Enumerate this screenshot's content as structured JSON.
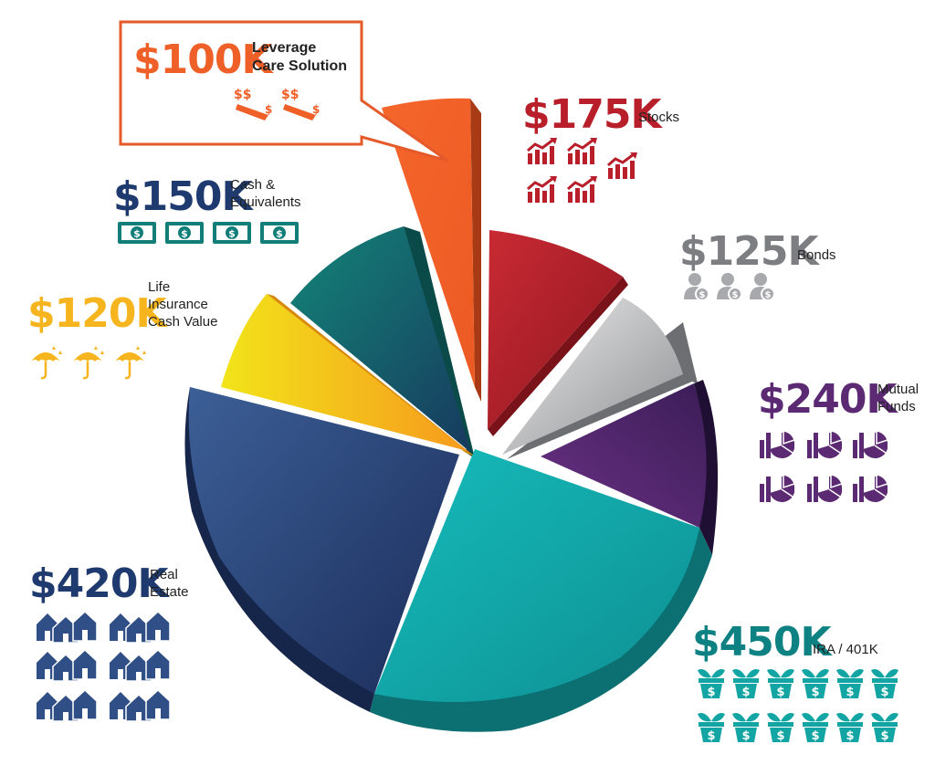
{
  "chart_data": {
    "type": "pie",
    "exploded_slice": "Leverage Care Solution",
    "slices": [
      {
        "amount": "$100K",
        "label_lines": [
          "Leverage",
          "Care Solution"
        ],
        "value": 100,
        "color": "#ef5f28",
        "side": "#b8441a",
        "icon": "money-transfer-icon",
        "icon_count": 2
      },
      {
        "amount": "$175K",
        "label_lines": [
          "Stocks"
        ],
        "value": 175,
        "color": "#b81f2a",
        "side": "#7a121a",
        "icon": "stock-chart-icon",
        "icon_count": 5
      },
      {
        "amount": "$125K",
        "label_lines": [
          "Bonds"
        ],
        "value": 125,
        "color": "#a7a9ac",
        "side": "#6d6e71",
        "icon": "bond-holder-icon",
        "icon_count": 3
      },
      {
        "amount": "$240K",
        "label_lines": [
          "Mutual",
          "Funds"
        ],
        "value": 240,
        "color": "#5b2a73",
        "side": "#2e1440",
        "icon": "fund-chart-icon",
        "icon_count": 6
      },
      {
        "amount": "$450K",
        "label_lines": [
          "IRA / 401K"
        ],
        "value": 450,
        "color": "#13aeb0",
        "side": "#0c6f72",
        "icon": "money-plant-icon",
        "icon_count": 12
      },
      {
        "amount": "$420K",
        "label_lines": [
          "Real",
          "Estate"
        ],
        "value": 420,
        "color": "#2f4f86",
        "side": "#16254a",
        "icon": "houses-icon",
        "icon_count": 6
      },
      {
        "amount": "$120K",
        "label_lines": [
          "Life",
          "Insurance",
          "Cash Value"
        ],
        "value": 120,
        "color": "#f6c219",
        "side": "#c98a0c",
        "icon": "umbrella-icon",
        "icon_count": 3
      },
      {
        "amount": "$150K",
        "label_lines": [
          "Cash &",
          "Equivalents"
        ],
        "value": 150,
        "color": "#127e7a",
        "side": "#0a4b49",
        "icon": "dollar-bill-icon",
        "icon_count": 4
      }
    ]
  }
}
